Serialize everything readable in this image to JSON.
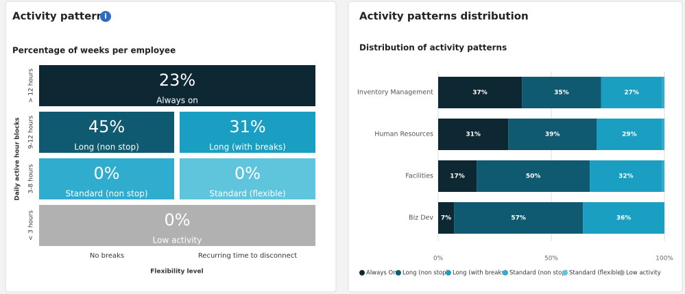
{
  "left_panel": {
    "title": "Activity patterns",
    "info_icon": "i",
    "subtitle": "Percentage of weeks per employee",
    "y_axis_label": "Daily active hour blocks",
    "row_labels": [
      "> 12 hours",
      "9-12 hours",
      "3-8 hours",
      "< 3 hours"
    ],
    "column_labels": [
      "No breaks",
      "Recurring time to disconnect"
    ],
    "x_axis_label": "Flexibility level",
    "tiles": [
      {
        "value": "23%",
        "label": "Always on",
        "color": "#0d2832"
      },
      {
        "value": "45%",
        "label": "Long (non stop)",
        "color": "#0f5a70"
      },
      {
        "value": "31%",
        "label": "Long (with breaks)",
        "color": "#1a9fc3"
      },
      {
        "value": "0%",
        "label": "Standard (non stop)",
        "color": "#30acce"
      },
      {
        "value": "0%",
        "label": "Standard (flexible)",
        "color": "#5ec5dd"
      },
      {
        "value": "0%",
        "label": "Low activity",
        "color": "#b1b1b1"
      }
    ]
  },
  "right_panel": {
    "title": "Activity patterns distribution"
  },
  "chart_data": {
    "type": "stacked-bar-horizontal",
    "title": "Distribution of activity patterns",
    "categories": [
      "Inventory Management",
      "Human Resources",
      "Facilities",
      "Biz Dev"
    ],
    "series": [
      {
        "name": "Always On",
        "color": "#0d2832",
        "values": [
          37,
          31,
          17,
          7
        ],
        "value_labels": [
          "37%",
          "31%",
          "17%",
          "7%"
        ]
      },
      {
        "name": "Long (non stop)",
        "color": "#0f5a70",
        "values": [
          35,
          39,
          50,
          57
        ],
        "value_labels": [
          "35%",
          "39%",
          "50%",
          "57%"
        ]
      },
      {
        "name": "Long (with breaks)",
        "color": "#1a9fc3",
        "values": [
          27,
          29,
          32,
          36
        ],
        "value_labels": [
          "27%",
          "29%",
          "32%",
          "36%"
        ]
      },
      {
        "name": "Standard (non stop)",
        "color": "#30acce",
        "values": [
          1,
          1,
          1,
          0
        ],
        "value_labels": [
          null,
          null,
          null,
          null
        ]
      },
      {
        "name": "Standard (flexible)",
        "color": "#5ec5dd",
        "values": [
          0,
          0,
          0,
          0
        ],
        "value_labels": [
          null,
          null,
          null,
          null
        ]
      },
      {
        "name": "Low activity",
        "color": "#b1b1b1",
        "values": [
          0,
          0,
          0,
          0
        ],
        "value_labels": [
          null,
          null,
          null,
          null
        ]
      }
    ],
    "xlim": [
      0,
      100
    ],
    "xticks": [
      {
        "value": 0,
        "label": "0%"
      },
      {
        "value": 50,
        "label": "50%"
      },
      {
        "value": 100,
        "label": "100%"
      }
    ],
    "grid": true,
    "legend": "bottom"
  }
}
